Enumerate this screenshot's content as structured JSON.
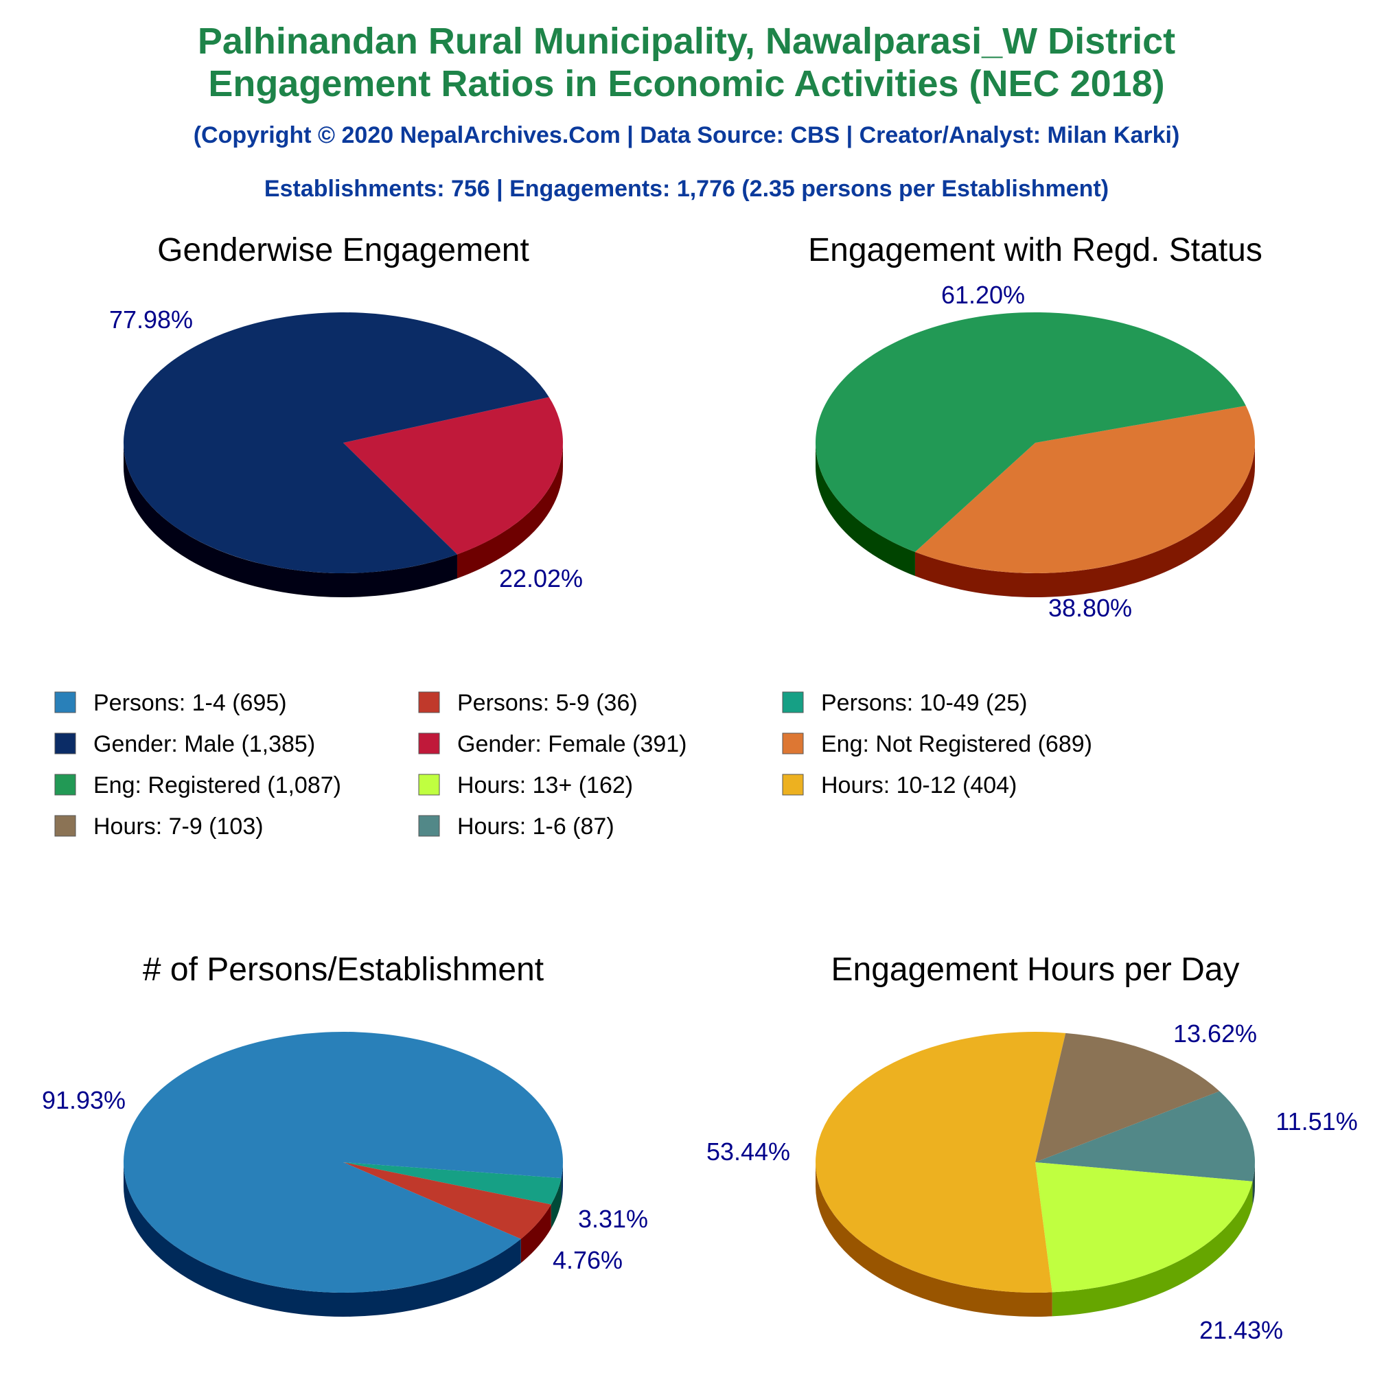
{
  "header": {
    "title_line1": "Palhinandan Rural Municipality, Nawalparasi_W District",
    "title_line2": "Engagement Ratios in Economic Activities (NEC 2018)",
    "copyright": "(Copyright © 2020 NepalArchives.Com | Data Source: CBS | Creator/Analyst: Milan Karki)",
    "summary": "Establishments: 756 | Engagements: 1,776 (2.35 persons per Establishment)"
  },
  "colors": {
    "title": "#1e8449",
    "subtitle": "#0b3a9c",
    "pct_label": "#00008b"
  },
  "legend": [
    {
      "label": "Persons: 1-4 (695)",
      "color": "#2980b9"
    },
    {
      "label": "Persons: 5-9 (36)",
      "color": "#c0392b"
    },
    {
      "label": "Persons: 10-49 (25)",
      "color": "#16a085"
    },
    {
      "label": "Gender: Male (1,385)",
      "color": "#0b2c66"
    },
    {
      "label": "Gender: Female (391)",
      "color": "#c0193a"
    },
    {
      "label": "Eng: Not Registered (689)",
      "color": "#dd7733"
    },
    {
      "label": "Eng: Registered (1,087)",
      "color": "#229955"
    },
    {
      "label": "Hours: 13+ (162)",
      "color": "#c0ff40"
    },
    {
      "label": "Hours: 10-12 (404)",
      "color": "#edb120"
    },
    {
      "label": "Hours: 7-9 (103)",
      "color": "#8b7355"
    },
    {
      "label": "Hours: 1-6 (87)",
      "color": "#528888"
    }
  ],
  "chart_data": [
    {
      "type": "pie",
      "title": "Genderwise Engagement",
      "slices": [
        {
          "name": "Gender: Female",
          "value": 391,
          "label": "22.02%",
          "color": "#c0193a",
          "side": "#6e0000"
        },
        {
          "name": "Gender: Male",
          "value": 1385,
          "label": "77.98%",
          "color": "#0b2c66",
          "side": "#000014"
        }
      ]
    },
    {
      "type": "pie",
      "title": "Engagement with Regd. Status",
      "slices": [
        {
          "name": "Eng: Not Registered",
          "value": 689,
          "label": "38.80%",
          "color": "#dd7733",
          "side": "#801800"
        },
        {
          "name": "Eng: Registered",
          "value": 1087,
          "label": "61.20%",
          "color": "#229955",
          "side": "#004400"
        }
      ]
    },
    {
      "type": "pie",
      "title": "# of Persons/Establishment",
      "slices": [
        {
          "name": "Persons: 10-49",
          "value": 25,
          "label": "3.31%",
          "color": "#16a085",
          "side": "#004a38"
        },
        {
          "name": "Persons: 5-9",
          "value": 36,
          "label": "4.76%",
          "color": "#c0392b",
          "side": "#6e0000"
        },
        {
          "name": "Persons: 1-4",
          "value": 695,
          "label": "91.93%",
          "color": "#2980b9",
          "side": "#002a5a"
        }
      ]
    },
    {
      "type": "pie",
      "title": "Engagement Hours per Day",
      "slices": [
        {
          "name": "Hours: 1-6",
          "value": 87,
          "label": "11.51%",
          "color": "#528888",
          "side": "#244848"
        },
        {
          "name": "Hours: 13+",
          "value": 162,
          "label": "21.43%",
          "color": "#c0ff40",
          "side": "#66a600"
        },
        {
          "name": "Hours: 10-12",
          "value": 404,
          "label": "53.44%",
          "color": "#edb120",
          "side": "#995500"
        },
        {
          "name": "Hours: 7-9",
          "value": 103,
          "label": "13.62%",
          "color": "#8b7355",
          "side": "#4a3a20"
        }
      ]
    }
  ]
}
